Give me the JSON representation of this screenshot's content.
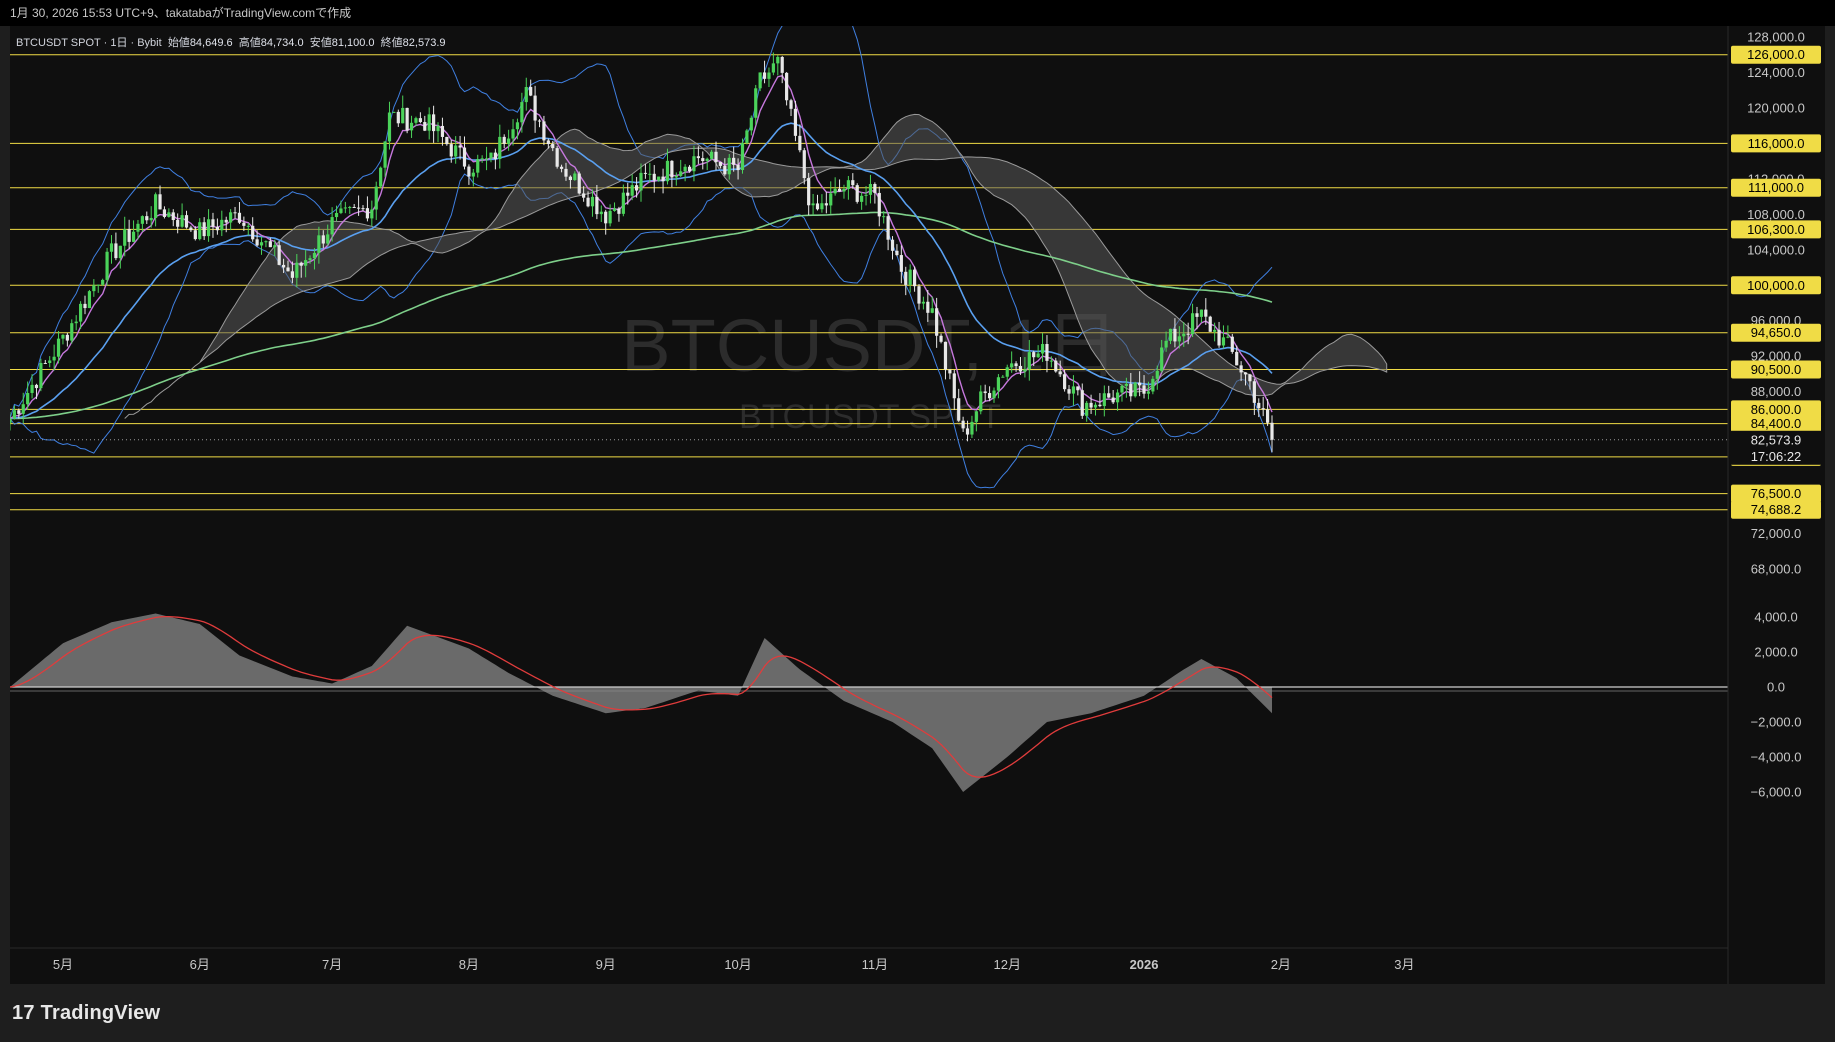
{
  "header": {
    "caption": "1月 30, 2026 15:53 UTC+9、takatabaがTradingView.comで作成"
  },
  "legend": {
    "symbol": "BTCUSDT SPOT · 1日 · Bybit",
    "open_label": "始値",
    "open": "84,649.6",
    "high_label": "高値",
    "high": "84,734.0",
    "low_label": "安値",
    "low": "81,100.0",
    "close_label": "終値",
    "close": "82,573.9"
  },
  "watermark": {
    "symbol": "BTCUSDT, 1日",
    "name": "BTCUSDT SPOT"
  },
  "brand": {
    "name": "TradingView"
  },
  "colors": {
    "bull": "#4bd35a",
    "bear": "#e8e8e8",
    "level": "#f0dc46",
    "bb": "#3f7fe0",
    "ema_short": "#c678dd",
    "ema_mid": "#5aa0f0",
    "ema_long": "#7ecf8a",
    "signal": "#e03c3c"
  },
  "chart_data": [
    {
      "type": "line",
      "panel": "price",
      "x": [
        "2025-04-19",
        "2025-05-01",
        "2025-05-12",
        "2025-05-22",
        "2025-06-01",
        "2025-06-10",
        "2025-06-22",
        "2025-07-01",
        "2025-07-10",
        "2025-07-14",
        "2025-07-22",
        "2025-08-01",
        "2025-08-06",
        "2025-08-14",
        "2025-08-22",
        "2025-09-01",
        "2025-09-10",
        "2025-09-22",
        "2025-10-01",
        "2025-10-06",
        "2025-10-10",
        "2025-10-18",
        "2025-10-25",
        "2025-11-01",
        "2025-11-07",
        "2025-11-14",
        "2025-11-21",
        "2025-11-25",
        "2025-12-01",
        "2025-12-10",
        "2025-12-18",
        "2025-12-25",
        "2026-01-01",
        "2026-01-06",
        "2026-01-14",
        "2026-01-20",
        "2026-01-25",
        "2026-01-30"
      ],
      "series": [
        {
          "values": [
            85000,
            94000,
            103500,
            109000,
            106000,
            108000,
            101000,
            107000,
            109000,
            119000,
            118500,
            113500,
            114000,
            121500,
            113500,
            108000,
            112000,
            114500,
            113000,
            123000,
            125000,
            108000,
            111000,
            110000,
            102000,
            97000,
            83000,
            87000,
            91000,
            92500,
            86500,
            87500,
            88000,
            93500,
            96500,
            93000,
            89000,
            82574
          ]
        }
      ],
      "price_axis": [
        "128,000.0",
        "124,000.0",
        "120,000.0",
        "116,000.0",
        "112,000.0",
        "108,000.0",
        "104,000.0",
        "100,000.0",
        "96,000.0",
        "92,000.0",
        "88,000.0",
        "84,000.0",
        "72,000.0",
        "68,000.0"
      ],
      "levels": [
        "126,000.0",
        "116,000.0",
        "111,000.0",
        "106,300.0",
        "100,000.0",
        "94,650.0",
        "90,500.0",
        "86,000.0",
        "84,400.0",
        "80,650.0",
        "76,500.0",
        "74,688.2"
      ],
      "last_price": "82,573.9",
      "countdown": "17:06:22",
      "time_axis": [
        "5月",
        "6月",
        "7月",
        "8月",
        "9月",
        "10月",
        "11月",
        "12月",
        "2026",
        "2月",
        "3月"
      ],
      "ylim": [
        64000,
        130000
      ]
    },
    {
      "type": "area",
      "panel": "oscillator",
      "x": [
        "2025-04-19",
        "2025-05-01",
        "2025-05-12",
        "2025-05-22",
        "2025-06-01",
        "2025-06-10",
        "2025-06-22",
        "2025-07-01",
        "2025-07-10",
        "2025-07-18",
        "2025-08-01",
        "2025-08-10",
        "2025-08-20",
        "2025-09-01",
        "2025-09-10",
        "2025-09-22",
        "2025-10-01",
        "2025-10-07",
        "2025-10-15",
        "2025-10-25",
        "2025-11-05",
        "2025-11-14",
        "2025-11-21",
        "2025-12-01",
        "2025-12-10",
        "2025-12-20",
        "2026-01-01",
        "2026-01-10",
        "2026-01-14",
        "2026-01-22",
        "2026-01-30"
      ],
      "series": [
        {
          "values": [
            0,
            2500,
            3700,
            4200,
            3600,
            1800,
            600,
            200,
            1200,
            3500,
            2200,
            800,
            -500,
            -1500,
            -1200,
            -200,
            -500,
            2800,
            1000,
            -800,
            -2000,
            -3500,
            -6000,
            -4000,
            -2000,
            -1500,
            -500,
            1000,
            1600,
            500,
            -1500
          ]
        }
      ],
      "axis": [
        "4,000.0",
        "2,000.0",
        "0.0",
        "−2,000.0",
        "−4,000.0",
        "−6,000.0"
      ],
      "ylim": [
        -7000,
        5000
      ]
    }
  ]
}
